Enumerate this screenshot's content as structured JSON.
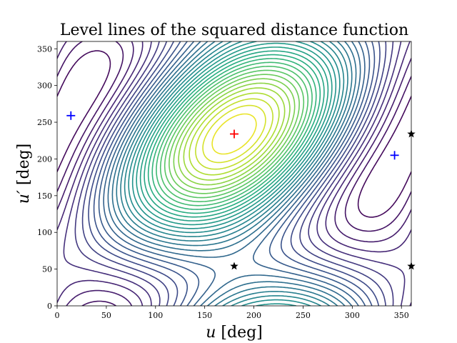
{
  "chart_data": {
    "type": "contour",
    "title": "Level lines of the squared distance function",
    "xlabel": {
      "symbol": "u",
      "unit": " [deg]"
    },
    "ylabel": {
      "symbol": "u′",
      "unit": " [deg]"
    },
    "xlim": [
      0,
      360
    ],
    "ylim": [
      0,
      360
    ],
    "x_ticks": [
      0,
      50,
      100,
      150,
      200,
      250,
      300,
      350
    ],
    "y_ticks": [
      0,
      50,
      100,
      150,
      200,
      250,
      300,
      350
    ],
    "grid": false,
    "colormap": "viridis",
    "colors": {
      "max_marker": "#ff0000",
      "min_marker": "#0000ff",
      "saddle_marker": "#000000"
    },
    "maximum": {
      "marker": "plus",
      "color": "#ff0000",
      "x": 180,
      "y": 234
    },
    "minima": [
      {
        "marker": "plus",
        "color": "#0000ff",
        "x": 14,
        "y": 259
      },
      {
        "marker": "plus",
        "color": "#0000ff",
        "x": 343,
        "y": 205
      }
    ],
    "saddles": [
      {
        "marker": "star",
        "color": "#000000",
        "x": 180,
        "y": 54
      },
      {
        "marker": "star",
        "color": "#000000",
        "x": 360,
        "y": 234
      },
      {
        "marker": "star",
        "color": "#000000",
        "x": 360,
        "y": 54
      }
    ]
  }
}
